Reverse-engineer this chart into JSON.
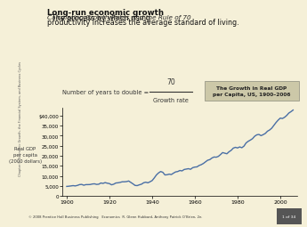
{
  "title": "Calculating Growth Rates and the Rule of 70",
  "subtitle_bold": "Long-run economic growth",
  "subtitle_text": "  The process by which rising\nproductivity increases the average standard of living.",
  "ylabel_line1": "Real GDP",
  "ylabel_line2": "per capita",
  "ylabel_line3": "(2000 dollars)",
  "xlabel_ticks": [
    1900,
    1920,
    1940,
    1960,
    1980,
    2000
  ],
  "ytick_labels": [
    "0",
    "5,000",
    "10,000",
    "15,000",
    "20,000",
    "25,000",
    "30,000",
    "35,000",
    "$40,000"
  ],
  "ytick_values": [
    0,
    5000,
    10000,
    15000,
    20000,
    25000,
    30000,
    35000,
    40000
  ],
  "line_color": "#4a6fa5",
  "bg_color": "#f5f0d8",
  "box_bg": "#ccc8a8",
  "formula_text": "Number of years to double = ",
  "formula_num": "70",
  "formula_den": "Growth rate",
  "box_label": "The Growth in Real GDP\nper Capita, US, 1900–2006",
  "footer": "© 2008 Prentice Hall Business Publishing   Economics  R. Glenn Hubbard, Anthony Patrick O’Brien, 2e.",
  "footer_right": "1 of 34",
  "side_label": "Chapter 8: Economic Growth, the Financial System, and Business Cycles",
  "gdp_data": {
    "years": [
      1900,
      1901,
      1902,
      1903,
      1904,
      1905,
      1906,
      1907,
      1908,
      1909,
      1910,
      1911,
      1912,
      1913,
      1914,
      1915,
      1916,
      1917,
      1918,
      1919,
      1920,
      1921,
      1922,
      1923,
      1924,
      1925,
      1926,
      1927,
      1928,
      1929,
      1930,
      1931,
      1932,
      1933,
      1934,
      1935,
      1936,
      1937,
      1938,
      1939,
      1940,
      1941,
      1942,
      1943,
      1944,
      1945,
      1946,
      1947,
      1948,
      1949,
      1950,
      1951,
      1952,
      1953,
      1954,
      1955,
      1956,
      1957,
      1958,
      1959,
      1960,
      1961,
      1962,
      1963,
      1964,
      1965,
      1966,
      1967,
      1968,
      1969,
      1970,
      1971,
      1972,
      1973,
      1974,
      1975,
      1976,
      1977,
      1978,
      1979,
      1980,
      1981,
      1982,
      1983,
      1984,
      1985,
      1986,
      1987,
      1988,
      1989,
      1990,
      1991,
      1992,
      1993,
      1994,
      1995,
      1996,
      1997,
      1998,
      1999,
      2000,
      2001,
      2002,
      2003,
      2004,
      2005,
      2006
    ],
    "values": [
      4800,
      4900,
      5050,
      5200,
      5050,
      5300,
      5700,
      5800,
      5400,
      5700,
      5700,
      5750,
      6000,
      6100,
      5800,
      5900,
      6500,
      6300,
      6700,
      6400,
      6200,
      5600,
      5900,
      6500,
      6600,
      6800,
      7100,
      7100,
      7200,
      7500,
      6800,
      6100,
      5300,
      5200,
      5600,
      5900,
      6600,
      6900,
      6600,
      7100,
      7700,
      9000,
      10500,
      11500,
      12200,
      11800,
      10500,
      10600,
      10900,
      10700,
      11400,
      12000,
      12200,
      12700,
      12500,
      13200,
      13400,
      13600,
      13300,
      14100,
      14400,
      14500,
      15200,
      15600,
      16200,
      17000,
      17800,
      18100,
      18900,
      19400,
      19300,
      19700,
      20600,
      21600,
      21300,
      21000,
      22000,
      22700,
      23800,
      24200,
      23900,
      24400,
      24000,
      24800,
      26400,
      27200,
      27800,
      28500,
      29700,
      30400,
      30600,
      30000,
      30500,
      31100,
      32200,
      32800,
      33700,
      35100,
      36500,
      37700,
      38700,
      38500,
      39100,
      40000,
      41200,
      41900,
      42700
    ]
  }
}
